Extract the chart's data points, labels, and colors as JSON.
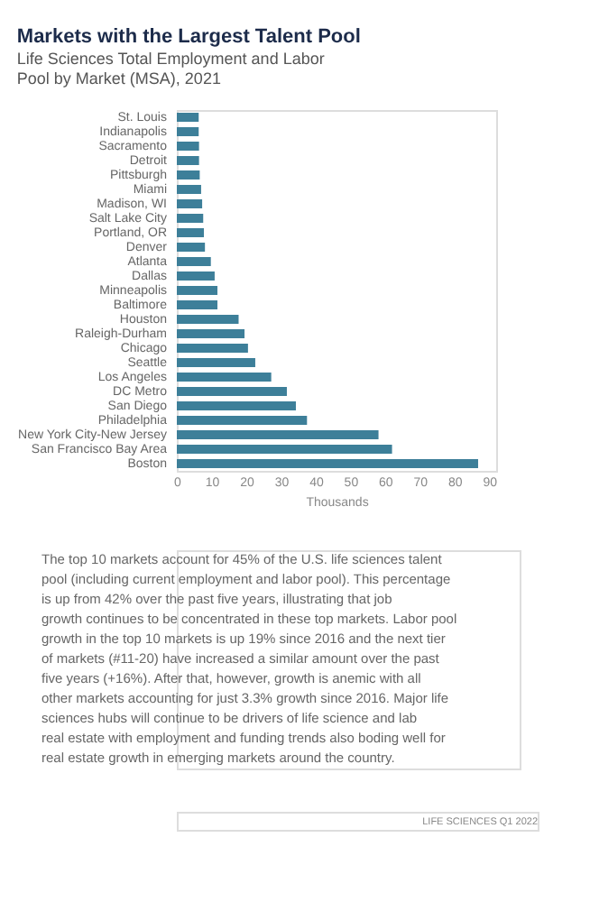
{
  "chart_data": {
    "type": "bar",
    "orientation": "horizontal",
    "title": "Markets with the Largest Talent Pool",
    "subtitle": "Life Sciences Total Employment and Labor Pool by Market (MSA), 2021",
    "xlabel": "Thousands",
    "categories": [
      "St. Louis",
      "Indianapolis",
      "Sacramento",
      "Detroit",
      "Pittsburgh",
      "Miami",
      "Madison, WI",
      "Salt Lake City",
      "Portland, OR",
      "Denver",
      "Atlanta",
      "Dallas",
      "Minneapolis",
      "Baltimore",
      "Houston",
      "Raleigh-Durham",
      "Chicago",
      "Seattle",
      "Los Angeles",
      "DC Metro",
      "San Diego",
      "Philadelphia",
      "New York City-New Jersey",
      "San Francisco Bay Area",
      "Boston"
    ],
    "values": [
      6.3,
      6.3,
      6.4,
      6.4,
      6.6,
      7.0,
      7.3,
      7.6,
      7.8,
      8.1,
      9.8,
      10.9,
      11.7,
      11.7,
      17.8,
      19.5,
      20.5,
      22.6,
      27.2,
      31.7,
      34.3,
      37.5,
      58.1,
      62.0,
      86.8
    ],
    "color": "#3d7f99",
    "xlim": [
      0,
      92
    ],
    "xticks": [
      0,
      10,
      20,
      30,
      40,
      50,
      60,
      70,
      80,
      90
    ],
    "grid": false,
    "annotations": [
      "The top 10 markets account for 45% of the U.S. life sciences talent pool (including current employment and labor pool). This percentage is up from 42% over the past five years, illustrating that job growth continues to be concentrated in these top markets. Labor pool growth in the top 10 markets is up 19% since 2016 and the next tier of markets (#11-20) have increased a similar amount over the past five years (+16%). After that, however, growth is anemic with all other markets accounting for just 3.3% growth since 2016. Major life sciences hubs will continue to be drivers of life science and lab real estate with employment and funding trends also boding well for real estate growth in emerging markets around the country.",
      "LIFE SCIENCES Q1 2022"
    ]
  }
}
